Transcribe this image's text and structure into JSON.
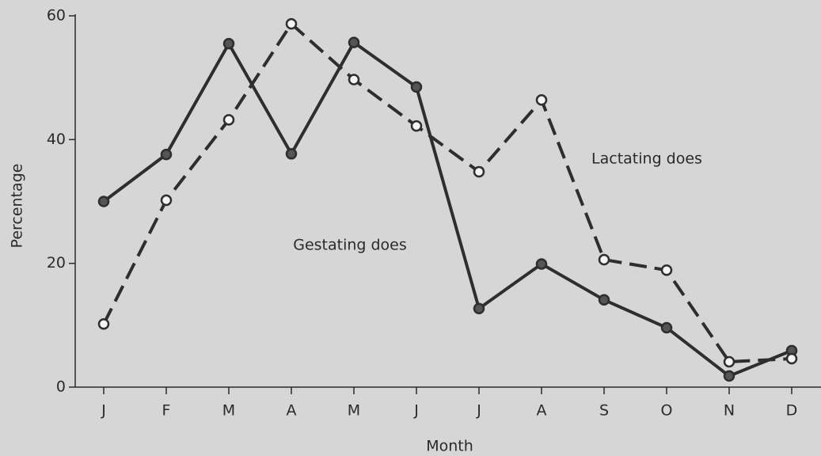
{
  "chart_data": {
    "type": "line",
    "categories": [
      "J",
      "F",
      "M",
      "A",
      "M",
      "J",
      "J",
      "A",
      "S",
      "O",
      "N",
      "D"
    ],
    "series": [
      {
        "name": "Gestating does",
        "color": "#2e2e2e",
        "values": [
          30,
          37.6,
          55.5,
          37.7,
          55.7,
          48.5,
          12.7,
          19.9,
          14.1,
          9.6,
          1.8,
          5.9
        ]
      },
      {
        "name": "Lactating does",
        "color": "#2e2e2e",
        "values": [
          10.2,
          30.2,
          43.2,
          58.7,
          49.7,
          42.2,
          34.8,
          46.4,
          20.6,
          18.9,
          4.1,
          4.6
        ]
      }
    ],
    "ylim": [
      0,
      60
    ],
    "yticks": [
      0,
      20,
      40,
      60
    ],
    "xlabel": "Month",
    "ylabel": "Percentage"
  }
}
